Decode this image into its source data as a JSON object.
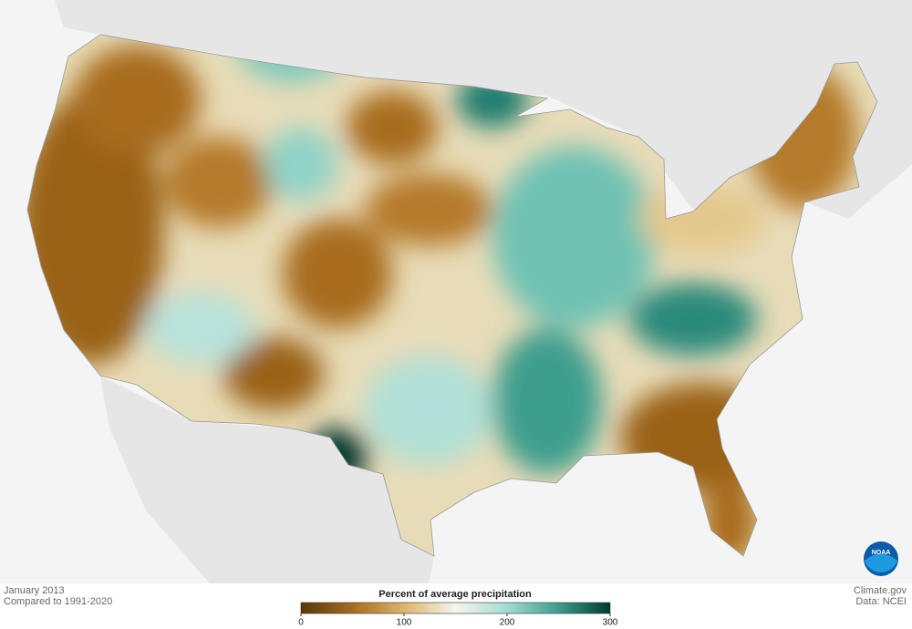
{
  "header": {
    "date": "January 2013",
    "baseline": "Compared to 1991-2020"
  },
  "legend": {
    "title": "Percent of average precipitation",
    "range": [
      0,
      300
    ],
    "ticks": [
      0,
      100,
      200,
      300
    ],
    "colors": [
      "#583709",
      "#a86c1f",
      "#dcb46c",
      "#f7f5ee",
      "#a3dbd2",
      "#3c9e8e",
      "#01382f"
    ]
  },
  "credits": {
    "site": "Climate.gov",
    "source": "Data: NCEI",
    "logo": "NOAA"
  }
}
